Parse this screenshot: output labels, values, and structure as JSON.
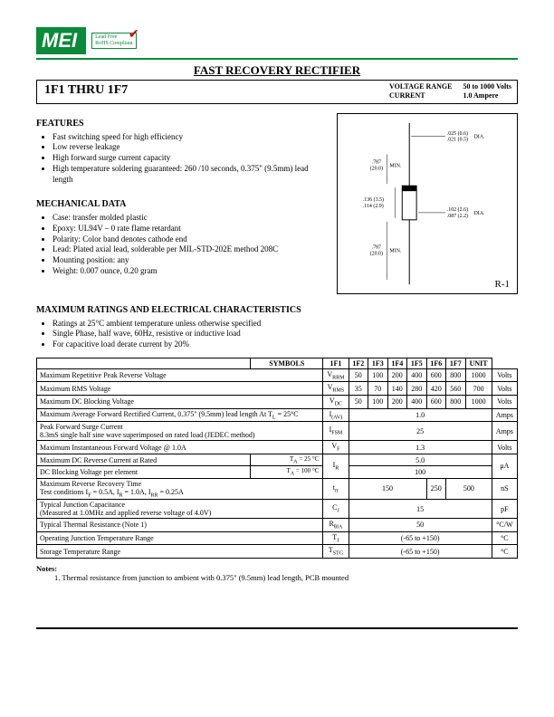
{
  "logo": {
    "text": "MEI",
    "badge_line1": "Lead Free",
    "badge_line2": "RoHS Compliant"
  },
  "title": "FAST RECOVERY RECTIFIER",
  "header": {
    "part_range": "1F1   THRU   1F7",
    "label1": "VOLTAGE RANGE",
    "label2": "CURRENT",
    "val1": "50 to 1000 Volts",
    "val2": "1.0 Ampere"
  },
  "features": {
    "heading": "FEATURES",
    "items": [
      "Fast switching speed for high efficiency",
      "Low reverse leakage",
      "High forward surge current capacity",
      "High temperature soldering guaranteed: 260 /10 seconds, 0.375\" (9.5mm) lead length"
    ]
  },
  "mechanical": {
    "heading": "MECHANICAL DATA",
    "items": [
      "Case:  transfer molded plastic",
      "Epoxy:  UL94V – 0 rate flame retardant",
      "Polarity:  Color band denotes cathode end",
      "Lead:  Plated axial lead, solderable per MIL-STD-202E method 208C",
      "Mounting position:  any",
      "Weight:  0.007 ounce, 0.20 gram"
    ]
  },
  "diagram": {
    "dims": {
      "d1": ".025 (0.6)",
      "d2": ".021 (0.5)",
      "d3": "DIA.",
      "l1": ".787",
      "l2": "(20.0)",
      "l3": "MIN.",
      "b1": ".136 (3.5)",
      "b2": ".114 (2.9)",
      "w1": ".102 (2.6)",
      "w2": ".087 (2.2)",
      "w3": "DIA.",
      "l4": ".787",
      "l5": "(20.0)",
      "l6": "MIN."
    },
    "package_label": "R-1"
  },
  "ratings": {
    "heading": "MAXIMUM RATINGS AND ELECTRICAL CHARACTERISTICS",
    "items": [
      "Ratings at 25°C ambient temperature unless otherwise specified",
      "Single Phase, half wave, 60Hz, resistive or inductive load",
      "For capacitive load derate current by 20%"
    ]
  },
  "table": {
    "cols": [
      "SYMBOLS",
      "1F1",
      "1F2",
      "1F3",
      "1F4",
      "1F5",
      "1F6",
      "1F7",
      "UNIT"
    ],
    "rows": [
      {
        "param": "Maximum Repetitive Peak Reverse Voltage",
        "sym": "V",
        "sub": "RRM",
        "vals": [
          "50",
          "100",
          "200",
          "400",
          "600",
          "800",
          "1000"
        ],
        "unit": "Volts"
      },
      {
        "param": "Maximum RMS Voltage",
        "sym": "V",
        "sub": "RMS",
        "vals": [
          "35",
          "70",
          "140",
          "280",
          "420",
          "560",
          "700"
        ],
        "unit": "Volts"
      },
      {
        "param": "Maximum DC Blocking Voltage",
        "sym": "V",
        "sub": "DC",
        "vals": [
          "50",
          "100",
          "200",
          "400",
          "600",
          "800",
          "1000"
        ],
        "unit": "Volts"
      },
      {
        "param": "Maximum Average Forward Rectified Current, 0.375\" (9.5mm) lead length At T<sub>L</sub> = 25°C",
        "sym": "I",
        "sub": "(AV)",
        "span": "1.0",
        "unit": "Amps"
      },
      {
        "param": "Peak Forward Surge Current<br>8.3mS single half sine wave superimposed on rated load (JEDEC method)",
        "sym": "I",
        "sub": "FSM",
        "span": "25",
        "unit": "Amps"
      },
      {
        "param": "Maximum Instantaneous Forward Voltage @ 1.0A",
        "sym": "V",
        "sub": "F",
        "span": "1.3",
        "unit": "Volts"
      },
      {
        "param2a": "Maximum DC Reverse Current at Rated",
        "cond2a": "T<sub>A</sub> = 25 °C",
        "param2b": "DC Blocking Voltage per element",
        "cond2b": "T<sub>A</sub> = 100 °C",
        "sym": "I",
        "sub": "R",
        "row1": "5.0",
        "row2": "100",
        "unit": "μA"
      },
      {
        "param": "Maximum Reverse Recovery Time<br>Test conditions  I<sub>F</sub> = 0.5A, I<sub>R</sub> = 1.0A, I<sub>RR</sub> = 0.25A",
        "sym": "t",
        "sub": "rr",
        "g1": "150",
        "g1s": 4,
        "g2": "250",
        "g2s": 1,
        "g3": "500",
        "g3s": 2,
        "unit": "nS"
      },
      {
        "param": "Typical Junction Capacitance<br>(Measured at 1.0MHz and applied reverse voltage of 4.0V)",
        "sym": "C",
        "sub": "J",
        "span": "15",
        "unit": "pF"
      },
      {
        "param": "Typical Thermal Resistance   (Note 1)",
        "sym": "R",
        "sub": "θJA",
        "span": "50",
        "unit": "°C/W"
      },
      {
        "param": "Operating Junction Temperature Range",
        "sym": "T",
        "sub": "J",
        "span": "(-65 to +150)",
        "unit": "°C"
      },
      {
        "param": "Storage Temperature Range",
        "sym": "T",
        "sub": "STG",
        "span": "(-65 to +150)",
        "unit": "°C"
      }
    ]
  },
  "notes": {
    "heading": "Notes:",
    "item": "1.    Thermal resistance from junction to ambient with 0.375\" (9.5mm) lead length, PCB mounted"
  }
}
